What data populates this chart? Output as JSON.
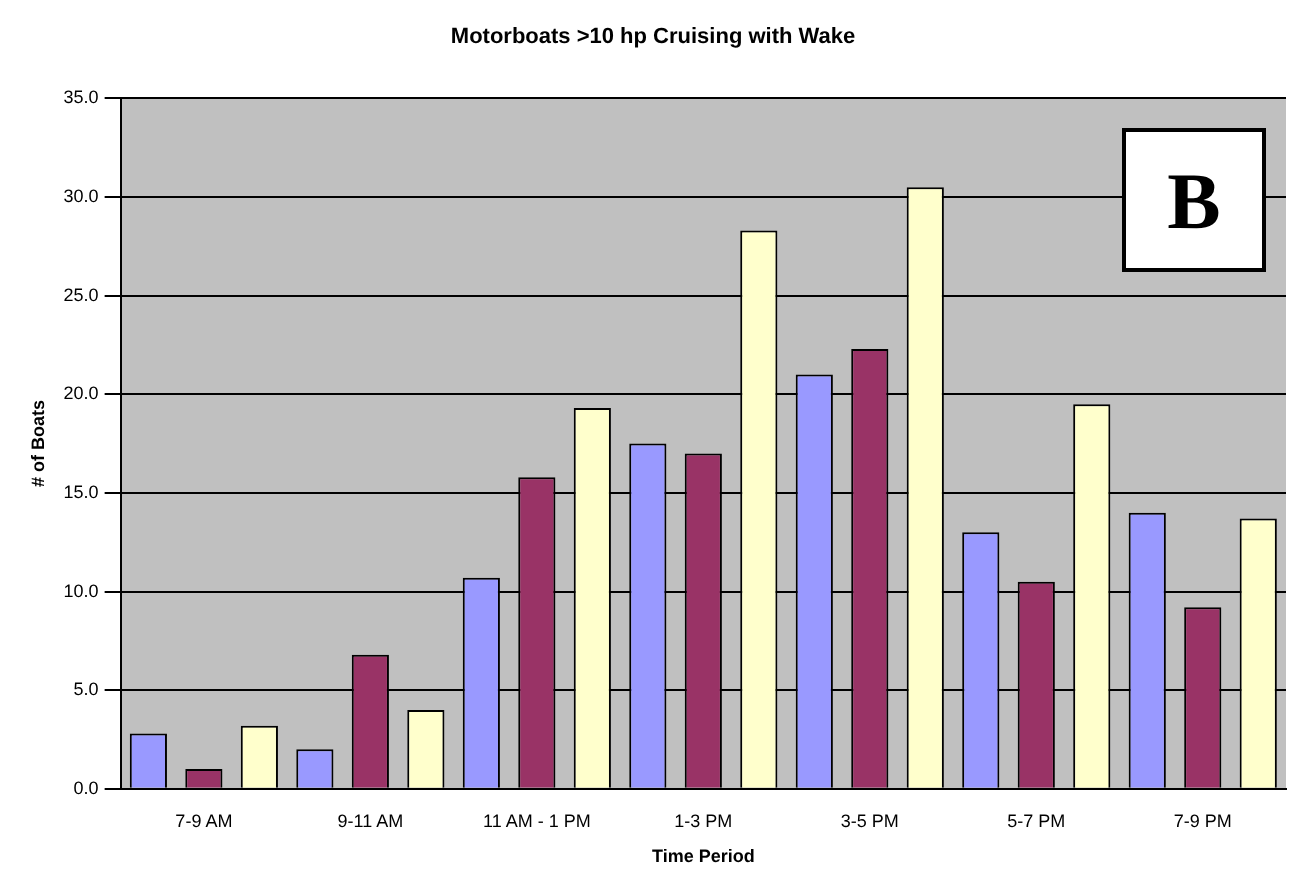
{
  "chart_data": {
    "type": "bar",
    "title": "Motorboats >10 hp Cruising with Wake",
    "xlabel": "Time Period",
    "ylabel": "# of Boats",
    "categories": [
      "7-9 AM",
      "9-11 AM",
      "11 AM - 1 PM",
      "1-3 PM",
      "3-5 PM",
      "5-7 PM",
      "7-9 PM"
    ],
    "series": [
      {
        "color": "#9999ff",
        "values": [
          2.8,
          2.0,
          10.7,
          17.5,
          21.0,
          13.0,
          14.0
        ]
      },
      {
        "color": "#993366",
        "values": [
          1.0,
          6.8,
          15.8,
          17.0,
          22.3,
          10.5,
          9.2
        ]
      },
      {
        "color": "#ffffcc",
        "values": [
          3.2,
          4.0,
          19.3,
          28.3,
          30.5,
          19.5,
          13.7
        ]
      }
    ],
    "ylim": [
      0,
      35
    ],
    "yticks": [
      {
        "value": 0,
        "label": "0.0"
      },
      {
        "value": 5,
        "label": "5.0"
      },
      {
        "value": 10,
        "label": "10.0"
      },
      {
        "value": 15,
        "label": "15.0"
      },
      {
        "value": 20,
        "label": "20.0"
      },
      {
        "value": 25,
        "label": "25.0"
      },
      {
        "value": 30,
        "label": "30.0"
      },
      {
        "value": 35,
        "label": "35.0"
      }
    ],
    "grid": "y",
    "legend": false,
    "annotations": [
      "B"
    ]
  }
}
